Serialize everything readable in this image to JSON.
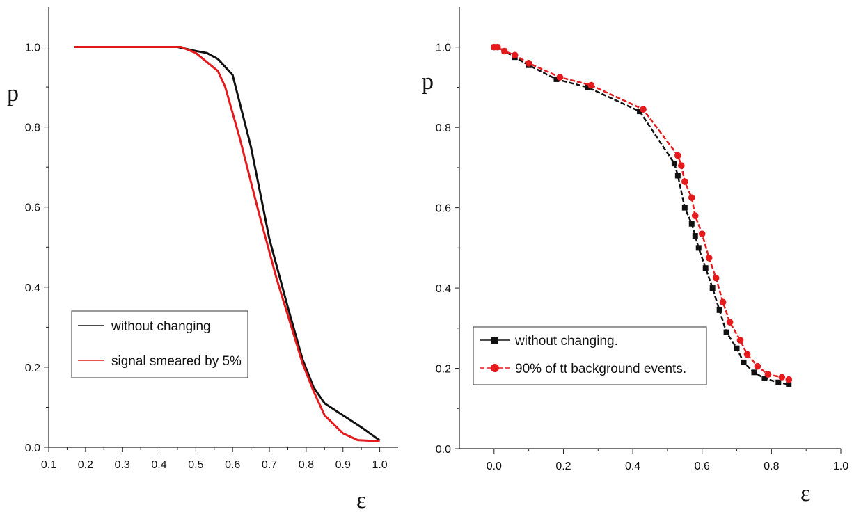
{
  "chart_data": [
    {
      "type": "line",
      "title": "",
      "xlabel": "ε",
      "ylabel": "p",
      "xlim": [
        0.1,
        1.05
      ],
      "ylim": [
        0.0,
        1.1
      ],
      "xticks": [
        "0.1",
        "0.2",
        "0.3",
        "0.4",
        "0.5",
        "0.6",
        "0.7",
        "0.8",
        "0.9",
        "1.0"
      ],
      "yticks": [
        "0.0",
        "0.2",
        "0.4",
        "0.6",
        "0.8",
        "1.0"
      ],
      "legend_position": "center-left",
      "series": [
        {
          "name": "without changing",
          "color": "#111111",
          "markers": false,
          "x": [
            0.17,
            0.3,
            0.45,
            0.5,
            0.53,
            0.56,
            0.6,
            0.65,
            0.7,
            0.75,
            0.79,
            0.82,
            0.85,
            0.9,
            0.95,
            1.0
          ],
          "y": [
            1.0,
            1.0,
            1.0,
            0.99,
            0.985,
            0.97,
            0.93,
            0.75,
            0.52,
            0.35,
            0.22,
            0.15,
            0.11,
            0.08,
            0.05,
            0.017
          ]
        },
        {
          "name": "signal smeared by 5%",
          "color": "#e41a1c",
          "markers": false,
          "x": [
            0.17,
            0.3,
            0.46,
            0.5,
            0.52,
            0.56,
            0.58,
            0.62,
            0.67,
            0.72,
            0.76,
            0.79,
            0.82,
            0.85,
            0.9,
            0.94,
            1.0
          ],
          "y": [
            1.0,
            1.0,
            1.0,
            0.985,
            0.97,
            0.94,
            0.9,
            0.77,
            0.59,
            0.42,
            0.3,
            0.21,
            0.14,
            0.08,
            0.035,
            0.018,
            0.015
          ]
        }
      ]
    },
    {
      "type": "line",
      "title": "",
      "xlabel": "ε",
      "ylabel": "p",
      "xlim": [
        -0.1,
        1.0
      ],
      "ylim": [
        0.0,
        1.1
      ],
      "xticks": [
        "0.0",
        "0.2",
        "0.4",
        "0.6",
        "0.8",
        "1.0"
      ],
      "yticks": [
        "0.0",
        "0.2",
        "0.4",
        "0.6",
        "0.8",
        "1.0"
      ],
      "legend_position": "lower-left",
      "series": [
        {
          "name": "without changing.",
          "color": "#111111",
          "marker": "square",
          "x": [
            0.0,
            0.01,
            0.03,
            0.06,
            0.1,
            0.18,
            0.27,
            0.42,
            0.52,
            0.53,
            0.55,
            0.57,
            0.58,
            0.59,
            0.61,
            0.63,
            0.65,
            0.67,
            0.7,
            0.72,
            0.75,
            0.78,
            0.82,
            0.85
          ],
          "y": [
            1.0,
            1.0,
            0.99,
            0.975,
            0.955,
            0.92,
            0.9,
            0.84,
            0.71,
            0.68,
            0.6,
            0.56,
            0.53,
            0.5,
            0.45,
            0.4,
            0.345,
            0.29,
            0.25,
            0.215,
            0.19,
            0.175,
            0.165,
            0.16
          ]
        },
        {
          "name": "90% of tt background events.",
          "color": "#e41a1c",
          "marker": "circle",
          "x": [
            0.0,
            0.01,
            0.03,
            0.06,
            0.1,
            0.19,
            0.28,
            0.43,
            0.53,
            0.54,
            0.55,
            0.57,
            0.58,
            0.6,
            0.62,
            0.64,
            0.66,
            0.68,
            0.71,
            0.73,
            0.76,
            0.79,
            0.83,
            0.85
          ],
          "y": [
            1.0,
            1.0,
            0.99,
            0.98,
            0.96,
            0.925,
            0.905,
            0.845,
            0.73,
            0.705,
            0.665,
            0.625,
            0.58,
            0.535,
            0.475,
            0.425,
            0.365,
            0.315,
            0.27,
            0.235,
            0.205,
            0.185,
            0.178,
            0.172
          ]
        }
      ]
    }
  ]
}
